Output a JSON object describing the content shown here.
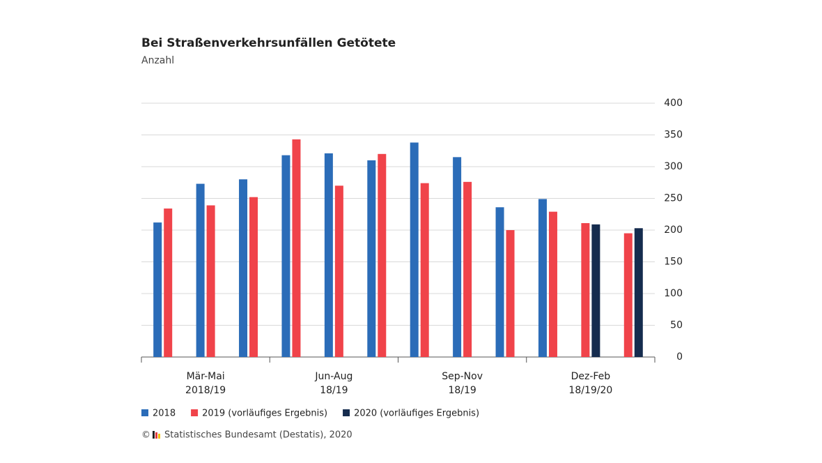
{
  "chart_data": {
    "type": "bar",
    "title": "Bei Straßenverkehrsunfällen Getötete",
    "subtitle": "Anzahl",
    "categories": [
      null,
      null,
      null,
      null,
      null,
      null,
      null,
      null,
      null,
      null,
      null,
      null
    ],
    "groups": [
      [
        "Mär-Mai",
        "2018/19"
      ],
      [
        "Jun-Aug",
        "18/19"
      ],
      [
        "Sep-Nov",
        "18/19"
      ],
      [
        "Dez-Feb",
        "18/19/20"
      ]
    ],
    "series": [
      {
        "name": "2018",
        "color": "#2b6cb8",
        "values": [
          212,
          273,
          280,
          318,
          321,
          310,
          338,
          315,
          236,
          249,
          null,
          null
        ]
      },
      {
        "name": "2019 (vorläufiges Ergebnis)",
        "color": "#f0434a",
        "values": [
          234,
          239,
          252,
          343,
          270,
          320,
          274,
          276,
          200,
          229,
          211,
          195
        ]
      },
      {
        "name": "2020 (vorläufiges Ergebnis)",
        "color": "#152c4e",
        "values": [
          null,
          null,
          null,
          null,
          null,
          null,
          null,
          null,
          null,
          null,
          209,
          203
        ]
      }
    ],
    "ylim": [
      0,
      400
    ],
    "yticks": [
      0,
      50,
      100,
      150,
      200,
      250,
      300,
      350,
      400
    ],
    "grid": true,
    "copyright": "©",
    "source": "Statistisches Bundesamt (Destatis), 2020"
  }
}
